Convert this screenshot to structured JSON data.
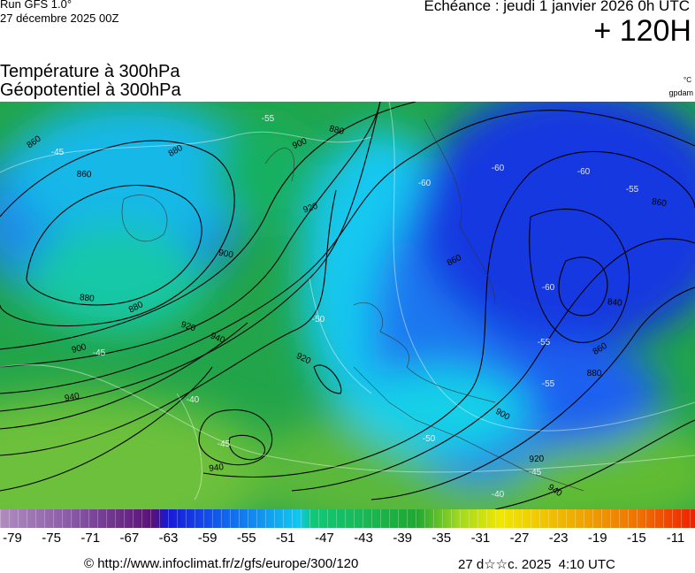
{
  "header": {
    "run": "Run GFS 1.0°",
    "run_date": "27 décembre 2025 00Z",
    "valid": "Echéance : jeudi 1 janvier 2026 0h UTC",
    "lead": "+ 120H",
    "field_temperature": "Température à 300hPa",
    "field_geopotential": "Géopotentiel à 300hPa",
    "unit_temperature": "°C",
    "unit_geopotential": "gpdam"
  },
  "map": {
    "geopotential_labels": [
      "860",
      "860",
      "880",
      "880",
      "880",
      "900",
      "900",
      "880",
      "920",
      "920",
      "900",
      "940",
      "940",
      "920",
      "940",
      "900",
      "920",
      "940",
      "880",
      "860",
      "840",
      "860",
      "860"
    ],
    "temperature_labels": [
      "-60",
      "-60",
      "-60",
      "-55",
      "-60",
      "-55",
      "-55",
      "-50",
      "-45",
      "-40",
      "-40",
      "-45",
      "-45",
      "-50",
      "-55",
      "-45"
    ]
  },
  "colorbar": {
    "labels": [
      "-79",
      "-75",
      "-71",
      "-67",
      "-63",
      "-59",
      "-55",
      "-51",
      "-47",
      "-43",
      "-39",
      "-35",
      "-31",
      "-27",
      "-23",
      "-19",
      "-15",
      "-11"
    ]
  },
  "footer": {
    "credit": "© http://www.infoclimat.fr/z/gfs/europe/300/120",
    "timestamp": "27 d☆☆c. 2025  4:10 UTC"
  }
}
